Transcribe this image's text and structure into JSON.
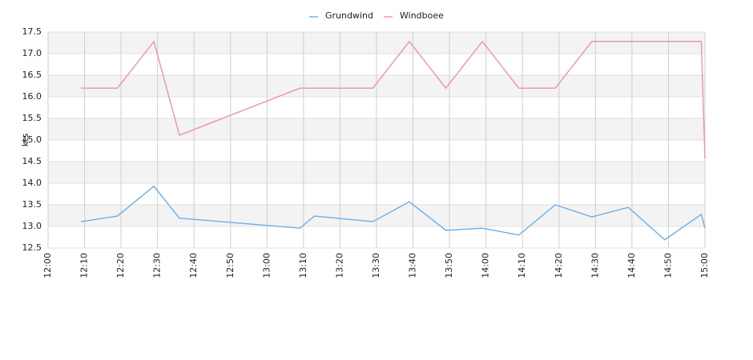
{
  "chart_data": {
    "type": "line",
    "y_label": "kts",
    "x": [
      "12:09",
      "12:19",
      "12:29",
      "12:36",
      "13:09",
      "13:13",
      "13:29",
      "13:39",
      "13:49",
      "13:59",
      "14:09",
      "14:19",
      "14:29",
      "14:39",
      "14:49",
      "14:59",
      "15:00"
    ],
    "series": [
      {
        "name": "Grundwind",
        "color": "#6aaee8",
        "values": [
          13.11,
          13.24,
          13.93,
          13.19,
          12.96,
          13.24,
          13.11,
          13.57,
          12.91,
          12.96,
          12.8,
          13.5,
          13.22,
          13.44,
          12.69,
          13.28,
          12.96
        ]
      },
      {
        "name": "Windboee",
        "color": "#ec8fbf",
        "values": [
          16.2,
          16.2,
          17.28,
          15.11,
          16.2,
          16.2,
          16.2,
          17.28,
          16.2,
          17.28,
          16.2,
          16.2,
          17.28,
          17.28,
          17.28,
          17.28,
          14.57
        ]
      }
    ],
    "xlim": [
      "12:00",
      "15:00"
    ],
    "xticks": [
      "12:00",
      "12:10",
      "12:20",
      "12:30",
      "12:40",
      "12:50",
      "13:00",
      "13:10",
      "13:20",
      "13:30",
      "13:40",
      "13:50",
      "14:00",
      "14:10",
      "14:20",
      "14:30",
      "14:40",
      "14:50",
      "15:00"
    ],
    "ylim": [
      12.5,
      17.5
    ],
    "yticks": [
      12.5,
      {
        "value": 13,
        "label": "13.0"
      },
      13.5,
      {
        "value": 14,
        "label": "14.0"
      },
      14.5,
      {
        "value": 15,
        "label": "15.0"
      },
      15.5,
      {
        "value": 16,
        "label": "16.0"
      },
      16.5,
      {
        "value": 17,
        "label": "17.0"
      },
      17.5
    ],
    "grid": true,
    "legend": "top"
  }
}
